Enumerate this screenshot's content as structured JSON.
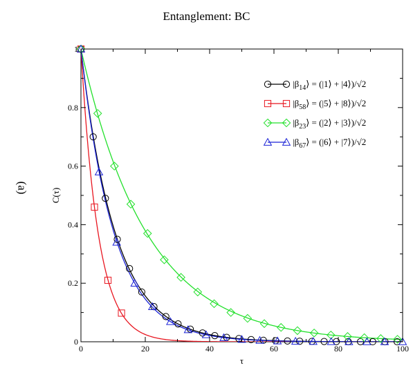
{
  "chart_data": {
    "type": "line",
    "title": "Entanglement: BC",
    "panel_label": "(a)",
    "xlabel": "τ",
    "ylabel": "C(τ)",
    "xlim": [
      0,
      100
    ],
    "ylim": [
      0,
      1
    ],
    "x_ticks": [
      0,
      20,
      40,
      60,
      80,
      100
    ],
    "y_ticks": [
      0,
      0.2,
      0.4,
      0.6,
      0.8,
      1
    ],
    "x_tick_labels": [
      "0",
      "20",
      "40",
      "60",
      "80",
      "100"
    ],
    "y_tick_labels": [
      "0",
      "0.2",
      "0.4",
      "0.6",
      "0.8",
      "1"
    ],
    "grid": false,
    "legend_position": "top-right",
    "series": [
      {
        "name": "|β14⟩ = (|1⟩ + |4⟩)/√2",
        "name_parts": [
          "|β",
          "14",
          "⟩ = (|1⟩ + |4⟩)/√2"
        ],
        "color": "#000000",
        "marker": "circle",
        "decay_rate": 0.0927,
        "x": [
          0,
          3.8,
          7.6,
          11.3,
          15.1,
          18.9,
          22.7,
          26.4,
          30.2,
          34.0,
          37.8,
          41.6,
          45.3,
          49.1,
          52.9,
          56.7,
          60.5,
          64.2,
          68.0,
          71.8,
          75.6,
          79.4,
          83.1,
          86.9,
          90.7,
          94.5,
          98.3
        ],
        "y": [
          1.0,
          0.7,
          0.49,
          0.35,
          0.25,
          0.17,
          0.12,
          0.086,
          0.061,
          0.043,
          0.03,
          0.021,
          0.015,
          0.011,
          0.0074,
          0.0052,
          0.0037,
          0.0026,
          0.0018,
          0.0013,
          0.0009,
          0.0006,
          0.0004,
          0.0003,
          0.0002,
          0.0002,
          0.0001
        ]
      },
      {
        "name": "|β58⟩ = (|5⟩ + |8⟩)/√2",
        "name_parts": [
          "|β",
          "58",
          "⟩ = (|5⟩ + |8⟩)/√2"
        ],
        "color": "#e8151f",
        "marker": "square",
        "decay_rate": 0.185,
        "x": [
          0,
          4.2,
          8.4,
          12.6
        ],
        "y": [
          1.0,
          0.46,
          0.21,
          0.098
        ]
      },
      {
        "name": "|β23⟩ = (|2⟩ + |3⟩)/√2",
        "name_parts": [
          "|β",
          "23",
          "⟩ = (|2⟩ + |3⟩)/√2"
        ],
        "color": "#22e02b",
        "marker": "diamond",
        "decay_rate": 0.0485,
        "x": [
          0,
          5.2,
          10.4,
          15.5,
          20.7,
          25.9,
          31.1,
          36.3,
          41.4,
          46.6,
          51.8,
          57.0,
          62.2,
          67.3,
          72.5,
          77.7,
          82.9,
          88.1,
          93.2,
          98.4
        ],
        "y": [
          1.0,
          0.78,
          0.6,
          0.47,
          0.37,
          0.28,
          0.22,
          0.17,
          0.13,
          0.1,
          0.08,
          0.062,
          0.049,
          0.038,
          0.03,
          0.023,
          0.018,
          0.014,
          0.011,
          0.0085
        ]
      },
      {
        "name": "|β67⟩ = (|6⟩ + |7⟩)/√2",
        "name_parts": [
          "|β",
          "67",
          "⟩ = (|6⟩ + |7⟩)/√2"
        ],
        "color": "#1a22d6",
        "marker": "triangle",
        "decay_rate": 0.0962,
        "x": [
          0,
          5.6,
          11.1,
          16.7,
          22.2,
          27.8,
          33.3,
          38.9,
          44.4,
          50.0,
          55.6,
          61.1,
          66.7,
          72.2,
          77.8,
          83.3,
          88.9,
          94.4,
          100
        ],
        "y": [
          1.0,
          0.58,
          0.34,
          0.2,
          0.12,
          0.069,
          0.041,
          0.024,
          0.014,
          0.008,
          0.0048,
          0.0028,
          0.0016,
          0.001,
          0.0006,
          0.0003,
          0.0002,
          0.0001,
          0.0001
        ]
      }
    ]
  }
}
